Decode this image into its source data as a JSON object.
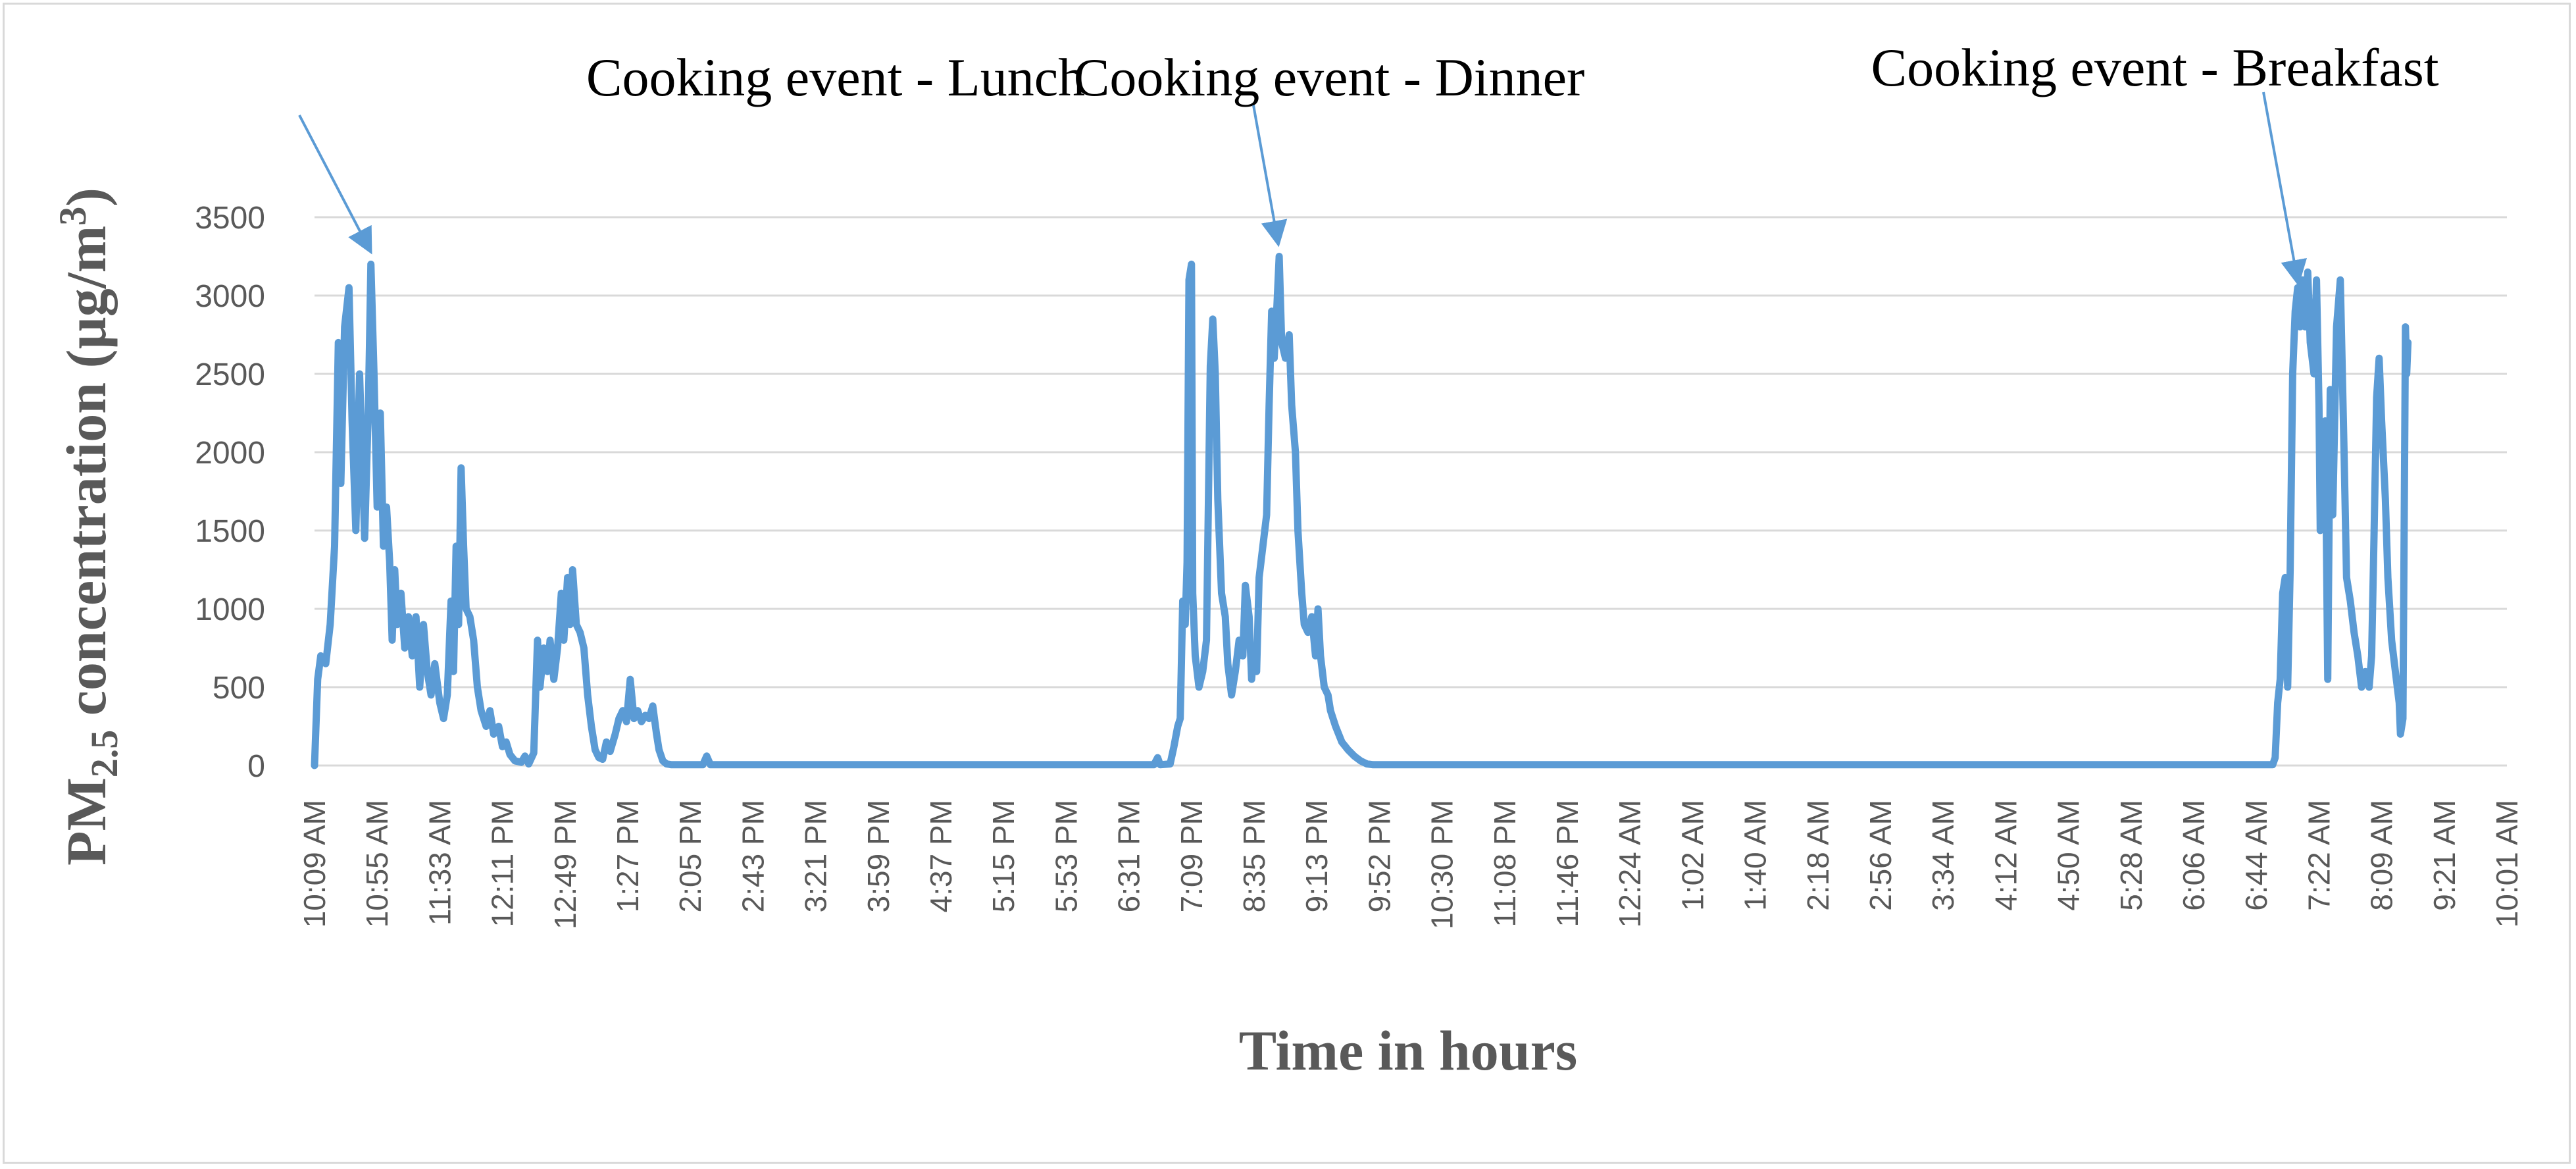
{
  "chart_data": {
    "type": "line",
    "xlabel": "Time in hours",
    "ylabel": {
      "prefix": "PM",
      "sub": "2.5",
      "middle": " concentration (µg/m",
      "sup": "3",
      "suffix": ")"
    },
    "ylim": [
      0,
      3500
    ],
    "y_ticks": [
      0,
      500,
      1000,
      1500,
      2000,
      2500,
      3000,
      3500
    ],
    "grid": true,
    "x_tick_labels": [
      "10:09 AM",
      "10:55 AM",
      "11:33 AM",
      "12:11 PM",
      "12:49 PM",
      "1:27 PM",
      "2:05 PM",
      "2:43 PM",
      "3:21 PM",
      "3:59 PM",
      "4:37 PM",
      "5:15 PM",
      "5:53 PM",
      "6:31 PM",
      "7:09 PM",
      "8:35 PM",
      "9:13 PM",
      "9:52 PM",
      "10:30 PM",
      "11:08 PM",
      "11:46 PM",
      "12:24 AM",
      "1:02 AM",
      "1:40 AM",
      "2:18 AM",
      "2:56 AM",
      "3:34 AM",
      "4:12 AM",
      "4:50 AM",
      "5:28 AM",
      "6:06 AM",
      "6:44 AM",
      "7:22 AM",
      "8:09 AM",
      "9:21 AM",
      "10:01 AM"
    ],
    "series": [
      {
        "color": "#5b9bd5",
        "points": [
          [
            0,
            0
          ],
          [
            0.05,
            550
          ],
          [
            0.1,
            700
          ],
          [
            0.18,
            650
          ],
          [
            0.25,
            900
          ],
          [
            0.32,
            1400
          ],
          [
            0.38,
            2700
          ],
          [
            0.42,
            1800
          ],
          [
            0.48,
            2800
          ],
          [
            0.55,
            3050
          ],
          [
            0.6,
            2200
          ],
          [
            0.66,
            1500
          ],
          [
            0.72,
            2500
          ],
          [
            0.8,
            1450
          ],
          [
            0.86,
            2300
          ],
          [
            0.9,
            3200
          ],
          [
            0.95,
            2500
          ],
          [
            1.0,
            1650
          ],
          [
            1.05,
            2250
          ],
          [
            1.1,
            1400
          ],
          [
            1.15,
            1650
          ],
          [
            1.2,
            1300
          ],
          [
            1.24,
            800
          ],
          [
            1.28,
            1250
          ],
          [
            1.32,
            900
          ],
          [
            1.38,
            1100
          ],
          [
            1.44,
            750
          ],
          [
            1.5,
            950
          ],
          [
            1.56,
            700
          ],
          [
            1.62,
            950
          ],
          [
            1.68,
            500
          ],
          [
            1.74,
            900
          ],
          [
            1.8,
            600
          ],
          [
            1.86,
            450
          ],
          [
            1.92,
            650
          ],
          [
            2.0,
            400
          ],
          [
            2.06,
            300
          ],
          [
            2.12,
            450
          ],
          [
            2.18,
            1050
          ],
          [
            2.22,
            600
          ],
          [
            2.26,
            1400
          ],
          [
            2.3,
            900
          ],
          [
            2.34,
            1900
          ],
          [
            2.38,
            1400
          ],
          [
            2.42,
            1000
          ],
          [
            2.48,
            950
          ],
          [
            2.54,
            800
          ],
          [
            2.6,
            500
          ],
          [
            2.66,
            350
          ],
          [
            2.74,
            250
          ],
          [
            2.8,
            350
          ],
          [
            2.86,
            200
          ],
          [
            2.94,
            250
          ],
          [
            3.0,
            120
          ],
          [
            3.06,
            150
          ],
          [
            3.12,
            70
          ],
          [
            3.2,
            30
          ],
          [
            3.3,
            20
          ],
          [
            3.36,
            60
          ],
          [
            3.42,
            10
          ],
          [
            3.5,
            80
          ],
          [
            3.56,
            800
          ],
          [
            3.6,
            500
          ],
          [
            3.66,
            750
          ],
          [
            3.72,
            600
          ],
          [
            3.76,
            800
          ],
          [
            3.82,
            550
          ],
          [
            3.88,
            750
          ],
          [
            3.94,
            1100
          ],
          [
            3.98,
            800
          ],
          [
            4.04,
            1200
          ],
          [
            4.08,
            900
          ],
          [
            4.12,
            1250
          ],
          [
            4.18,
            900
          ],
          [
            4.24,
            850
          ],
          [
            4.3,
            750
          ],
          [
            4.36,
            450
          ],
          [
            4.42,
            250
          ],
          [
            4.48,
            100
          ],
          [
            4.54,
            50
          ],
          [
            4.6,
            40
          ],
          [
            4.66,
            150
          ],
          [
            4.72,
            90
          ],
          [
            4.8,
            200
          ],
          [
            4.86,
            300
          ],
          [
            4.92,
            350
          ],
          [
            4.98,
            280
          ],
          [
            5.04,
            550
          ],
          [
            5.1,
            300
          ],
          [
            5.16,
            350
          ],
          [
            5.22,
            280
          ],
          [
            5.28,
            320
          ],
          [
            5.34,
            300
          ],
          [
            5.4,
            380
          ],
          [
            5.46,
            200
          ],
          [
            5.5,
            100
          ],
          [
            5.56,
            30
          ],
          [
            5.62,
            10
          ],
          [
            5.7,
            5
          ],
          [
            6.2,
            5
          ],
          [
            6.26,
            60
          ],
          [
            6.32,
            5
          ],
          [
            13.4,
            5
          ],
          [
            13.46,
            50
          ],
          [
            13.5,
            5
          ],
          [
            13.66,
            10
          ],
          [
            13.72,
            120
          ],
          [
            13.78,
            250
          ],
          [
            13.82,
            300
          ],
          [
            13.86,
            1050
          ],
          [
            13.9,
            900
          ],
          [
            13.93,
            1300
          ],
          [
            13.96,
            3100
          ],
          [
            14.0,
            3200
          ],
          [
            14.02,
            1100
          ],
          [
            14.06,
            700
          ],
          [
            14.12,
            500
          ],
          [
            14.18,
            600
          ],
          [
            14.24,
            800
          ],
          [
            14.3,
            2550
          ],
          [
            14.34,
            2850
          ],
          [
            14.38,
            2500
          ],
          [
            14.42,
            1700
          ],
          [
            14.48,
            1100
          ],
          [
            14.54,
            950
          ],
          [
            14.58,
            650
          ],
          [
            14.64,
            450
          ],
          [
            14.7,
            600
          ],
          [
            14.76,
            800
          ],
          [
            14.82,
            700
          ],
          [
            14.86,
            1150
          ],
          [
            14.92,
            950
          ],
          [
            14.96,
            550
          ],
          [
            15.0,
            750
          ],
          [
            15.04,
            600
          ],
          [
            15.08,
            1200
          ],
          [
            15.14,
            1400
          ],
          [
            15.2,
            1600
          ],
          [
            15.24,
            2300
          ],
          [
            15.28,
            2900
          ],
          [
            15.32,
            2600
          ],
          [
            15.36,
            2900
          ],
          [
            15.4,
            3250
          ],
          [
            15.44,
            2700
          ],
          [
            15.5,
            2600
          ],
          [
            15.56,
            2750
          ],
          [
            15.6,
            2300
          ],
          [
            15.66,
            2000
          ],
          [
            15.7,
            1500
          ],
          [
            15.76,
            1100
          ],
          [
            15.8,
            900
          ],
          [
            15.86,
            850
          ],
          [
            15.92,
            950
          ],
          [
            15.98,
            700
          ],
          [
            16.02,
            1000
          ],
          [
            16.06,
            700
          ],
          [
            16.12,
            500
          ],
          [
            16.18,
            450
          ],
          [
            16.22,
            350
          ],
          [
            16.3,
            250
          ],
          [
            16.4,
            150
          ],
          [
            16.5,
            100
          ],
          [
            16.6,
            60
          ],
          [
            16.7,
            30
          ],
          [
            16.8,
            10
          ],
          [
            16.9,
            5
          ],
          [
            31.26,
            5
          ],
          [
            31.3,
            50
          ],
          [
            31.34,
            400
          ],
          [
            31.38,
            550
          ],
          [
            31.42,
            1100
          ],
          [
            31.46,
            1200
          ],
          [
            31.5,
            500
          ],
          [
            31.54,
            1250
          ],
          [
            31.58,
            2500
          ],
          [
            31.62,
            2900
          ],
          [
            31.66,
            3050
          ],
          [
            31.7,
            2800
          ],
          [
            31.74,
            3100
          ],
          [
            31.78,
            2800
          ],
          [
            31.82,
            3150
          ],
          [
            31.86,
            2700
          ],
          [
            31.92,
            2500
          ],
          [
            31.96,
            3100
          ],
          [
            32.0,
            2300
          ],
          [
            32.02,
            1500
          ],
          [
            32.06,
            1850
          ],
          [
            32.1,
            2200
          ],
          [
            32.14,
            550
          ],
          [
            32.18,
            2400
          ],
          [
            32.22,
            1600
          ],
          [
            32.28,
            2800
          ],
          [
            32.34,
            3100
          ],
          [
            32.4,
            2000
          ],
          [
            32.44,
            1200
          ],
          [
            32.5,
            1050
          ],
          [
            32.56,
            850
          ],
          [
            32.62,
            700
          ],
          [
            32.68,
            500
          ],
          [
            32.74,
            600
          ],
          [
            32.8,
            500
          ],
          [
            32.84,
            700
          ],
          [
            32.88,
            1500
          ],
          [
            32.92,
            2350
          ],
          [
            32.96,
            2600
          ],
          [
            33.0,
            2200
          ],
          [
            33.06,
            1700
          ],
          [
            33.1,
            1200
          ],
          [
            33.16,
            800
          ],
          [
            33.22,
            600
          ],
          [
            33.28,
            400
          ],
          [
            33.3,
            200
          ],
          [
            33.34,
            300
          ],
          [
            33.38,
            2800
          ],
          [
            33.4,
            2500
          ],
          [
            33.42,
            2700
          ]
        ]
      }
    ],
    "annotations": [
      {
        "text": "Cooking event - Lunch",
        "target_x": 0.88,
        "target_y": 3200
      },
      {
        "text": "Cooking event - Dinner",
        "target_x": 15.38,
        "target_y": 3250
      },
      {
        "text": "Cooking event - Breakfast",
        "target_x": 31.66,
        "target_y": 3000
      }
    ]
  }
}
